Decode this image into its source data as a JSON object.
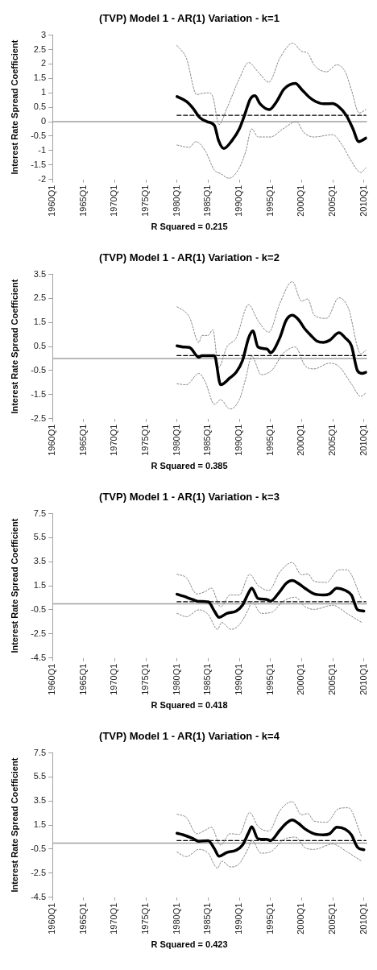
{
  "chart_data": [
    {
      "type": "line",
      "title": "(TVP) Model 1 - AR(1) Variation - k=1",
      "xlabel": "R Squared = 0.215",
      "ylabel": "Interest Rate Spread Coefficient",
      "xlim": [
        "1960-01",
        "2010-07"
      ],
      "xticks": [
        {
          "value": "1960-01",
          "label": "1960Q1"
        },
        {
          "value": "1965-01",
          "label": "1965Q1"
        },
        {
          "value": "1970-01",
          "label": "1970Q1"
        },
        {
          "value": "1975-01",
          "label": "1975Q1"
        },
        {
          "value": "1980-01",
          "label": "1980Q1"
        },
        {
          "value": "1985-01",
          "label": "1985Q1"
        },
        {
          "value": "1990-01",
          "label": "1990Q1"
        },
        {
          "value": "1995-01",
          "label": "1995Q1"
        },
        {
          "value": "2000-01",
          "label": "2000Q1"
        },
        {
          "value": "2005-01",
          "label": "2005Q1"
        },
        {
          "value": "2010-01",
          "label": "2010Q1"
        }
      ],
      "ylim": [
        -2,
        3
      ],
      "yticks": [
        -2,
        -1.5,
        -1,
        -0.5,
        0,
        0.5,
        1,
        1.5,
        2,
        2.5,
        3
      ],
      "grid": false,
      "legend": false,
      "marker": "none",
      "ref_lines": [
        {
          "axis": "y",
          "value": 0,
          "color": "#a0a0a0"
        }
      ],
      "series": [
        {
          "color": "#000000",
          "line_style": "solid",
          "x": [
            "1980-01",
            "1981-07",
            "1982-08",
            "1983-09",
            "1984-11",
            "1986-01",
            "1986-09",
            "1987-07",
            "1988-11",
            "1990-01",
            "1990-11",
            "1991-10",
            "1992-07",
            "1993-05",
            "1994-11",
            "1996-01",
            "1997-03",
            "1999-01",
            "2000-02",
            "2001-03",
            "2002-04",
            "2003-08",
            "2005-01",
            "2005-11",
            "2007-03",
            "2008-04",
            "2009-03",
            "2010-05"
          ],
          "values": [
            0.87,
            0.7,
            0.46,
            0.14,
            0,
            -0.13,
            -0.65,
            -0.93,
            -0.65,
            -0.25,
            0.22,
            0.78,
            0.9,
            0.62,
            0.42,
            0.7,
            1.13,
            1.33,
            1.1,
            0.86,
            0.7,
            0.62,
            0.63,
            0.54,
            0.22,
            -0.25,
            -0.69,
            -0.57
          ]
        },
        {
          "color": "#808080",
          "line_style": "dotted",
          "x": [
            "1980-01",
            "1981-07",
            "1983-03",
            "1984-01",
            "1985-01",
            "1985-10",
            "1986-10",
            "1988-01",
            "1990-01",
            "1991-07",
            "1993-01",
            "1994-10",
            "1996-07",
            "1998-08",
            "2000-01",
            "2001-01",
            "2002-01",
            "2004-01",
            "2005-09",
            "2007-01",
            "2008-01",
            "2009-04",
            "2010-05"
          ],
          "values": [
            2.64,
            2.2,
            0.94,
            0.98,
            1,
            0.86,
            -0.1,
            0.46,
            1.49,
            2.05,
            1.73,
            1.37,
            2.2,
            2.72,
            2.44,
            2.37,
            1.97,
            1.73,
            1.97,
            1.73,
            1.1,
            0.3,
            0.42
          ]
        },
        {
          "color": "#808080",
          "line_style": "dotted",
          "x": [
            "1980-01",
            "1982-01",
            "1983-01",
            "1984-07",
            "1986-01",
            "1987-01",
            "1988-05",
            "1990-01",
            "1991-01",
            "1992-01",
            "1993-01",
            "1995-01",
            "1997-01",
            "1999-03",
            "2000-05",
            "2002-01",
            "2005-01",
            "2006-07",
            "2008-01",
            "2009-07",
            "2010-05"
          ],
          "values": [
            -0.81,
            -0.89,
            -0.69,
            -1,
            -1.68,
            -1.8,
            -1.96,
            -1.6,
            -1.05,
            -0.25,
            -0.53,
            -0.53,
            -0.25,
            0,
            -0.37,
            -0.53,
            -0.45,
            -0.81,
            -1.37,
            -1.76,
            -1.6
          ]
        },
        {
          "color": "#000000",
          "line_style": "dashed",
          "x": [
            "1980-01",
            "2010-05"
          ],
          "values": [
            0.22,
            0.22
          ]
        }
      ]
    },
    {
      "type": "line",
      "title": "(TVP) Model 1 - AR(1) Variation - k=2",
      "xlabel": "R Squared = 0.385",
      "ylabel": "Interest Rate Spread Coefficient",
      "xlim": [
        "1960-01",
        "2010-07"
      ],
      "xticks": [
        {
          "value": "1960-01",
          "label": "1960Q1"
        },
        {
          "value": "1965-01",
          "label": "1965Q1"
        },
        {
          "value": "1970-01",
          "label": "1970Q1"
        },
        {
          "value": "1975-01",
          "label": "1975Q1"
        },
        {
          "value": "1980-01",
          "label": "1980Q1"
        },
        {
          "value": "1985-01",
          "label": "1985Q1"
        },
        {
          "value": "1990-01",
          "label": "1990Q1"
        },
        {
          "value": "1995-01",
          "label": "1995Q1"
        },
        {
          "value": "2000-01",
          "label": "2000Q1"
        },
        {
          "value": "2005-01",
          "label": "2005Q1"
        },
        {
          "value": "2010-01",
          "label": "2010Q1"
        }
      ],
      "ylim": [
        -2.5,
        3.5
      ],
      "yticks": [
        -2.5,
        -1.5,
        -0.5,
        0.5,
        1.5,
        2.5,
        3.5
      ],
      "grid": false,
      "legend": false,
      "marker": "none",
      "ref_lines": [
        {
          "axis": "y",
          "value": 0,
          "color": "#a0a0a0"
        }
      ],
      "series": [
        {
          "color": "#000000",
          "line_style": "solid",
          "x": [
            "1980-01",
            "1981-01",
            "1982-01",
            "1983-07",
            "1984-01",
            "1986-01",
            "1987-01",
            "1988-07",
            "1989-07",
            "1990-07",
            "1991-07",
            "1992-03",
            "1993-01",
            "1994-07",
            "1995-01",
            "1996-07",
            "1997-07",
            "1998-07",
            "1999-07",
            "2000-07",
            "2001-07",
            "2002-07",
            "2003-07",
            "2004-07",
            "2006-01",
            "2007-01",
            "2008-01",
            "2009-01",
            "2009-10",
            "2010-05"
          ],
          "values": [
            0.53,
            0.48,
            0.46,
            0.05,
            0.12,
            0.12,
            -1.09,
            -0.8,
            -0.57,
            -0.09,
            0.86,
            1.15,
            0.48,
            0.39,
            0.24,
            0.86,
            1.58,
            1.8,
            1.62,
            1.24,
            0.96,
            0.72,
            0.67,
            0.76,
            1.07,
            0.86,
            0.53,
            -0.52,
            -0.62,
            -0.57
          ]
        },
        {
          "color": "#808080",
          "line_style": "dotted",
          "x": [
            "1980-01",
            "1981-01",
            "1982-01",
            "1983-07",
            "1984-01",
            "1985-01",
            "1985-10",
            "1986-09",
            "1988-01",
            "1989-07",
            "1991-07",
            "1993-01",
            "1994-10",
            "1996-07",
            "1998-07",
            "2000-01",
            "2001-01",
            "2002-01",
            "2004-01",
            "2006-01",
            "2007-07",
            "2009-07",
            "2010-05"
          ],
          "values": [
            2.15,
            2,
            1.72,
            0.67,
            0.96,
            0.96,
            1.2,
            -0.37,
            0.48,
            0.86,
            2.24,
            1.58,
            1.1,
            2.29,
            3.2,
            2.39,
            2.48,
            1.81,
            1.67,
            2.53,
            2.1,
            0.2,
            0.34
          ]
        },
        {
          "color": "#808080",
          "line_style": "dotted",
          "x": [
            "1980-01",
            "1981-07",
            "1983-07",
            "1984-07",
            "1986-01",
            "1987-01",
            "1988-07",
            "1990-01",
            "1991-01",
            "1992-01",
            "1993-07",
            "1995-04",
            "1997-01",
            "1999-01",
            "2000-07",
            "2002-01",
            "2004-07",
            "2006-01",
            "2008-01",
            "2009-07",
            "2010-05"
          ],
          "values": [
            -1.05,
            -1.09,
            -0.62,
            -0.95,
            -1.9,
            -1.71,
            -2.1,
            -1.71,
            -0.86,
            0.1,
            -0.67,
            -0.48,
            0.2,
            0.48,
            -0.28,
            -0.43,
            -0.19,
            -0.33,
            -1.05,
            -1.57,
            -1.43
          ]
        },
        {
          "color": "#000000",
          "line_style": "dashed",
          "x": [
            "1980-01",
            "2010-05"
          ],
          "values": [
            0.12,
            0.12
          ]
        }
      ]
    },
    {
      "type": "line",
      "title": "(TVP) Model 1 - AR(1) Variation - k=3",
      "xlabel": "R Squared = 0.418",
      "ylabel": "Interest Rate Spread Coefficient",
      "xlim": [
        "1960-01",
        "2010-07"
      ],
      "xticks": [
        {
          "value": "1960-01",
          "label": "1960Q1"
        },
        {
          "value": "1965-01",
          "label": "1965Q1"
        },
        {
          "value": "1970-01",
          "label": "1970Q1"
        },
        {
          "value": "1975-01",
          "label": "1975Q1"
        },
        {
          "value": "1980-01",
          "label": "1980Q1"
        },
        {
          "value": "1985-01",
          "label": "1985Q1"
        },
        {
          "value": "1990-01",
          "label": "1990Q1"
        },
        {
          "value": "1995-01",
          "label": "1995Q1"
        },
        {
          "value": "2000-01",
          "label": "2000Q1"
        },
        {
          "value": "2005-01",
          "label": "2005Q1"
        },
        {
          "value": "2010-01",
          "label": "2010Q1"
        }
      ],
      "ylim": [
        -4.5,
        7.5
      ],
      "yticks": [
        -4.5,
        -2.5,
        -0.5,
        1.5,
        3.5,
        5.5,
        7.5
      ],
      "grid": false,
      "legend": false,
      "marker": "none",
      "ref_lines": [
        {
          "axis": "y",
          "value": 0,
          "color": "#a0a0a0"
        }
      ],
      "series": [
        {
          "color": "#000000",
          "line_style": "solid",
          "x": [
            "1980-01",
            "1981-01",
            "1982-07",
            "1983-07",
            "1985-01",
            "1986-01",
            "1986-10",
            "1988-01",
            "1989-07",
            "1990-07",
            "1991-07",
            "1992-01",
            "1993-01",
            "1994-07",
            "1995-01",
            "1996-07",
            "1997-07",
            "1998-07",
            "1999-07",
            "2000-07",
            "2002-01",
            "2003-07",
            "2004-07",
            "2005-09",
            "2007-01",
            "2008-01",
            "2009-01",
            "2010-01"
          ],
          "values": [
            0.8,
            0.64,
            0.36,
            0.2,
            0.17,
            -0.6,
            -1.13,
            -0.79,
            -0.6,
            -0.12,
            0.93,
            1.31,
            0.45,
            0.36,
            0.22,
            1.02,
            1.69,
            1.94,
            1.69,
            1.31,
            0.83,
            0.74,
            0.83,
            1.31,
            1.12,
            0.74,
            -0.5,
            -0.6
          ]
        },
        {
          "color": "#808080",
          "line_style": "dotted",
          "x": [
            "1980-01",
            "1981-07",
            "1983-03",
            "1984-07",
            "1985-07",
            "1987-01",
            "1988-07",
            "1990-01",
            "1991-09",
            "1993-01",
            "1994-10",
            "1996-07",
            "1998-07",
            "2000-01",
            "2001-01",
            "2002-01",
            "2004-01",
            "2006-01",
            "2007-04",
            "2009-09"
          ],
          "values": [
            2.45,
            2.17,
            0.83,
            1.02,
            1.31,
            -0.25,
            0.74,
            0.74,
            2.45,
            1.54,
            1.12,
            2.64,
            3.44,
            2.41,
            2.49,
            1.88,
            1.79,
            2.83,
            2.83,
            0.36
          ]
        },
        {
          "color": "#808080",
          "line_style": "dotted",
          "x": [
            "1980-01",
            "1981-07",
            "1983-07",
            "1985-01",
            "1986-07",
            "1987-03",
            "1988-09",
            "1990-01",
            "1991-07",
            "1992-01",
            "1993-07",
            "1995-04",
            "1997-01",
            "1999-01",
            "2000-07",
            "2002-01",
            "2005-01",
            "2007-04",
            "2009-09"
          ],
          "values": [
            -0.79,
            -1.07,
            -0.5,
            -0.88,
            -2.12,
            -1.55,
            -2.12,
            -1.74,
            -0.41,
            0.2,
            -0.79,
            -0.69,
            0.2,
            0.55,
            -0.22,
            -0.46,
            -0.12,
            -0.79,
            -1.55
          ]
        },
        {
          "color": "#000000",
          "line_style": "dashed",
          "x": [
            "1980-01",
            "2010-05"
          ],
          "values": [
            0.17,
            0.17
          ]
        }
      ]
    },
    {
      "type": "line",
      "title": "(TVP) Model 1 - AR(1) Variation - k=4",
      "xlabel": "R Squared = 0.423",
      "ylabel": "Interest Rate Spread Coefficient",
      "xlim": [
        "1960-01",
        "2010-07"
      ],
      "xticks": [
        {
          "value": "1960-01",
          "label": "1960Q1"
        },
        {
          "value": "1965-01",
          "label": "1965Q1"
        },
        {
          "value": "1970-01",
          "label": "1970Q1"
        },
        {
          "value": "1975-01",
          "label": "1975Q1"
        },
        {
          "value": "1980-01",
          "label": "1980Q1"
        },
        {
          "value": "1985-01",
          "label": "1985Q1"
        },
        {
          "value": "1990-01",
          "label": "1990Q1"
        },
        {
          "value": "1995-01",
          "label": "1995Q1"
        },
        {
          "value": "2000-01",
          "label": "2000Q1"
        },
        {
          "value": "2005-01",
          "label": "2005Q1"
        },
        {
          "value": "2010-01",
          "label": "2010Q1"
        }
      ],
      "ylim": [
        -4.5,
        7.5
      ],
      "yticks": [
        -4.5,
        -2.5,
        -0.5,
        1.5,
        3.5,
        5.5,
        7.5
      ],
      "grid": false,
      "legend": false,
      "marker": "none",
      "ref_lines": [
        {
          "axis": "y",
          "value": 0,
          "color": "#a0a0a0"
        }
      ],
      "series": [
        {
          "color": "#000000",
          "line_style": "solid",
          "x": [
            "1980-01",
            "1981-01",
            "1982-07",
            "1983-07",
            "1985-01",
            "1986-01",
            "1986-10",
            "1988-01",
            "1989-07",
            "1990-07",
            "1991-07",
            "1992-01",
            "1993-01",
            "1994-07",
            "1995-01",
            "1996-07",
            "1997-07",
            "1998-07",
            "1999-07",
            "2000-07",
            "2002-01",
            "2003-07",
            "2004-07",
            "2005-09",
            "2007-01",
            "2008-01",
            "2009-01",
            "2010-01"
          ],
          "values": [
            0.82,
            0.69,
            0.4,
            0.15,
            0.21,
            -0.46,
            -1.09,
            -0.78,
            -0.59,
            -0.17,
            0.88,
            1.35,
            0.36,
            0.31,
            0.21,
            1.07,
            1.64,
            1.93,
            1.64,
            1.2,
            0.78,
            0.69,
            0.78,
            1.32,
            1.16,
            0.69,
            -0.36,
            -0.55
          ]
        },
        {
          "color": "#808080",
          "line_style": "dotted",
          "x": [
            "1980-01",
            "1981-07",
            "1983-03",
            "1984-07",
            "1985-07",
            "1987-01",
            "1988-07",
            "1990-01",
            "1991-09",
            "1993-01",
            "1994-10",
            "1996-07",
            "1998-07",
            "2000-01",
            "2001-01",
            "2002-01",
            "2004-01",
            "2006-01",
            "2007-07",
            "2009-09"
          ],
          "values": [
            2.4,
            2.12,
            0.78,
            1.07,
            1.32,
            -0.17,
            0.78,
            0.73,
            2.54,
            1.39,
            1.01,
            2.69,
            3.45,
            2.35,
            2.46,
            1.83,
            1.74,
            2.88,
            2.94,
            0.5
          ]
        },
        {
          "color": "#808080",
          "line_style": "dotted",
          "x": [
            "1980-01",
            "1981-07",
            "1983-07",
            "1985-01",
            "1986-07",
            "1987-03",
            "1988-09",
            "1990-01",
            "1991-07",
            "1992-01",
            "1993-07",
            "1995-04",
            "1997-01",
            "1999-01",
            "2000-07",
            "2002-01",
            "2005-01",
            "2007-04",
            "2009-09"
          ],
          "values": [
            -0.74,
            -1.13,
            -0.52,
            -0.84,
            -2.08,
            -1.51,
            -1.98,
            -1.7,
            -0.36,
            0.21,
            -0.84,
            -0.65,
            0.25,
            0.5,
            -0.36,
            -0.52,
            -0.08,
            -0.71,
            -1.51
          ]
        },
        {
          "color": "#000000",
          "line_style": "dashed",
          "x": [
            "1980-01",
            "2010-05"
          ],
          "values": [
            0.21,
            0.21
          ]
        }
      ]
    }
  ]
}
